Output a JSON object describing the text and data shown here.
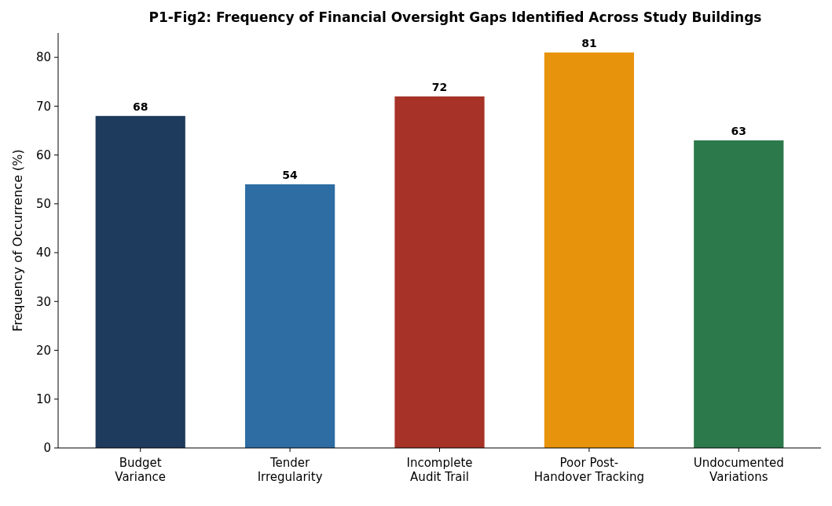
{
  "chart_data": {
    "type": "bar",
    "title": "P1-Fig2: Frequency of Financial Oversight Gaps Identified Across Study Buildings",
    "ylabel": "Frequency of Occurrence (%)",
    "categories": [
      "Budget\nVariance",
      "Tender\nIrregularity",
      "Incomplete\nAudit Trail",
      "Poor Post-\nHandover Tracking",
      "Undocumented\nVariations"
    ],
    "values": [
      68,
      54,
      72,
      81,
      63
    ],
    "colors": [
      "#1e3a5c",
      "#2e6da4",
      "#a63228",
      "#e8930c",
      "#2c7a4b"
    ],
    "ylim": [
      0,
      85
    ],
    "yticks": [
      0,
      10,
      20,
      30,
      40,
      50,
      60,
      70,
      80
    ],
    "data_labels": true,
    "grid": false
  }
}
